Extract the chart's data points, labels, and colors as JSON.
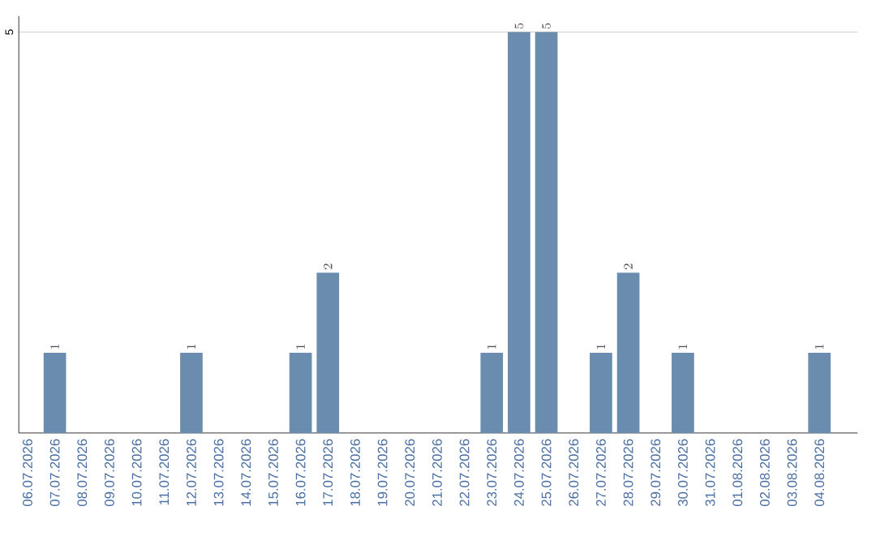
{
  "chart_data": {
    "type": "bar",
    "categories": [
      "06.07.2026",
      "07.07.2026",
      "08.07.2026",
      "09.07.2026",
      "10.07.2026",
      "11.07.2026",
      "12.07.2026",
      "13.07.2026",
      "14.07.2026",
      "15.07.2026",
      "16.07.2026",
      "17.07.2026",
      "18.07.2026",
      "19.07.2026",
      "20.07.2026",
      "21.07.2026",
      "22.07.2026",
      "23.07.2026",
      "24.07.2026",
      "25.07.2026",
      "26.07.2026",
      "27.07.2026",
      "28.07.2026",
      "29.07.2026",
      "30.07.2026",
      "31.07.2026",
      "01.08.2026",
      "02.08.2026",
      "03.08.2026",
      "04.08.2026"
    ],
    "values": [
      null,
      1,
      null,
      null,
      null,
      null,
      1,
      null,
      null,
      null,
      1,
      2,
      null,
      null,
      null,
      null,
      null,
      1,
      5,
      5,
      null,
      1,
      2,
      null,
      1,
      null,
      null,
      null,
      null,
      1
    ],
    "color": "#6a8cae",
    "ylim": [
      0,
      5.2
    ],
    "yticks": [
      5
    ],
    "grid": "y",
    "data_labels": true
  }
}
